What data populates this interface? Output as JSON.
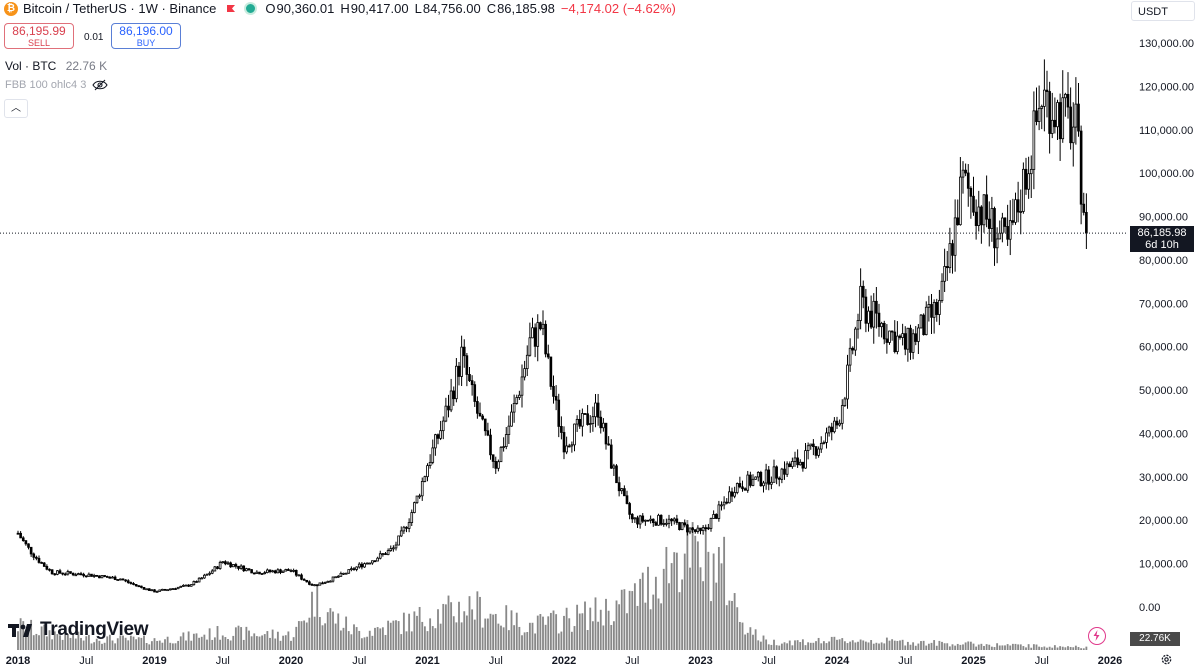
{
  "header": {
    "symbol_title": "Bitcoin / TetherUS · 1W · Binance",
    "ohlc": [
      {
        "label": "O",
        "value": "90,360.01"
      },
      {
        "label": "H",
        "value": "90,417.00"
      },
      {
        "label": "L",
        "value": "84,756.00"
      },
      {
        "label": "C",
        "value": "86,185.98"
      }
    ],
    "change": "−4,174.02 (−4.62%)",
    "change_color": "#f23645"
  },
  "trade": {
    "sell_price": "86,195.99",
    "sell_label": "SELL",
    "spread": "0.01",
    "buy_price": "86,196.00",
    "buy_label": "BUY"
  },
  "volume_legend": {
    "label": "Vol · BTC",
    "value": "22.76 K"
  },
  "indicator_legend": {
    "label": "FBB 100 ohlc4 3",
    "icon": "eye-crossed-icon"
  },
  "currency_button": "USDT",
  "last_price_tag": {
    "price": "86,185.98",
    "countdown": "6d 10h"
  },
  "volume_tag": "22.76K",
  "brand": "TradingView",
  "colors": {
    "up": "#ffffff",
    "down": "#000000",
    "outline": "#000000",
    "volume": "#888888"
  },
  "chart_data": {
    "type": "candlestick",
    "y_axis": {
      "ticks": [
        "130,000.00",
        "120,000.00",
        "110,000.00",
        "100,000.00",
        "90,000.00",
        "80,000.00",
        "70,000.00",
        "60,000.00",
        "50,000.00",
        "40,000.00",
        "30,000.00",
        "20,000.00",
        "10,000.00",
        "0.00"
      ],
      "range": [
        -1000,
        131000
      ]
    },
    "x_axis": {
      "ticks": [
        "2018",
        "Jul",
        "2019",
        "Jul",
        "2020",
        "Jul",
        "2021",
        "Jul",
        "2022",
        "Jul",
        "2023",
        "Jul",
        "2024",
        "Jul",
        "2025",
        "Jul",
        "2026"
      ]
    },
    "current_price": 86185.98,
    "price_series": {
      "start": "2018-01",
      "interval": "1W",
      "approx_close_by_quarter": [
        [
          "2018-01",
          17000
        ],
        [
          "2018-04",
          8000
        ],
        [
          "2018-07",
          7500
        ],
        [
          "2018-10",
          6500
        ],
        [
          "2019-01",
          3600
        ],
        [
          "2019-04",
          5000
        ],
        [
          "2019-07",
          10500
        ],
        [
          "2019-10",
          8000
        ],
        [
          "2020-01",
          8500
        ],
        [
          "2020-03",
          5000
        ],
        [
          "2020-07",
          9500
        ],
        [
          "2020-10",
          13500
        ],
        [
          "2021-01",
          33000
        ],
        [
          "2021-04",
          58000
        ],
        [
          "2021-07",
          33000
        ],
        [
          "2021-10",
          61000
        ],
        [
          "2021-11",
          65000
        ],
        [
          "2022-01",
          38000
        ],
        [
          "2022-04",
          46000
        ],
        [
          "2022-07",
          20000
        ],
        [
          "2022-10",
          20000
        ],
        [
          "2023-01",
          17000
        ],
        [
          "2023-04",
          28000
        ],
        [
          "2023-07",
          30000
        ],
        [
          "2023-10",
          34000
        ],
        [
          "2024-01",
          42000
        ],
        [
          "2024-03",
          70000
        ],
        [
          "2024-07",
          60000
        ],
        [
          "2024-10",
          69000
        ],
        [
          "2024-12",
          98000
        ],
        [
          "2025-04",
          83000
        ],
        [
          "2025-07",
          118000
        ],
        [
          "2025-10",
          110000
        ],
        [
          "2025-11",
          86186
        ]
      ]
    },
    "volume_series": {
      "note_units": "BTC",
      "approx_relative_by_quarter": [
        [
          "2018-01",
          0.25
        ],
        [
          "2018-07",
          0.12
        ],
        [
          "2019-01",
          0.1
        ],
        [
          "2019-07",
          0.18
        ],
        [
          "2020-01",
          0.15
        ],
        [
          "2020-03",
          0.55
        ],
        [
          "2020-07",
          0.18
        ],
        [
          "2021-01",
          0.35
        ],
        [
          "2021-05",
          0.45
        ],
        [
          "2021-10",
          0.25
        ],
        [
          "2022-06",
          0.45
        ],
        [
          "2022-11",
          1.0
        ],
        [
          "2023-03",
          0.85
        ],
        [
          "2023-07",
          0.08
        ],
        [
          "2024-03",
          0.1
        ],
        [
          "2025-01",
          0.06
        ],
        [
          "2025-11",
          0.03
        ]
      ]
    }
  }
}
